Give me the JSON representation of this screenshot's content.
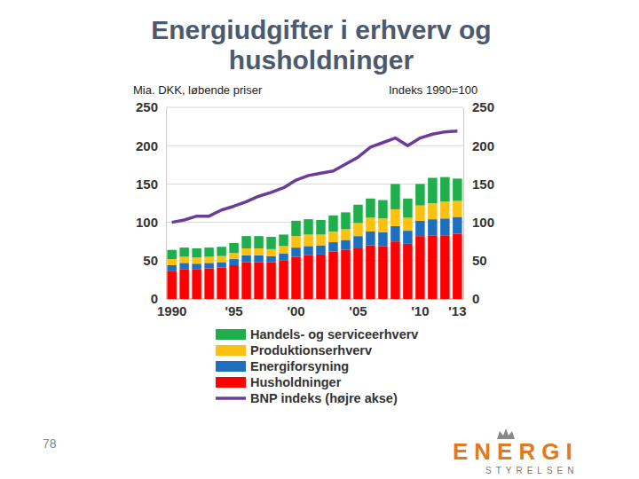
{
  "chart_data": {
    "type": "bar",
    "title": "Energiudgifter i erhverv og husholdninger",
    "ylabel": "Mia. DKK, løbende priser",
    "y2label": "Indeks 1990=100",
    "categories": [
      "1990",
      null,
      null,
      null,
      null,
      "'95",
      null,
      null,
      null,
      null,
      "'00",
      null,
      null,
      null,
      null,
      "'05",
      null,
      null,
      null,
      null,
      "'10",
      null,
      null,
      "'13"
    ],
    "stacked": true,
    "grid": true,
    "legend": "bottom",
    "ylim": [
      0,
      250
    ],
    "yticks": [
      0,
      50,
      100,
      150,
      200,
      250
    ],
    "y2lim": [
      0,
      250
    ],
    "y2ticks": [
      0,
      50,
      100,
      150,
      200,
      250
    ],
    "series": [
      {
        "name": "Husholdninger",
        "color": "#ff0000",
        "values": [
          36,
          39,
          39,
          40,
          41,
          44,
          48,
          48,
          48,
          50,
          55,
          57,
          58,
          62,
          64,
          67,
          70,
          69,
          75,
          72,
          82,
          83,
          83,
          85
        ]
      },
      {
        "name": "Energiforsyning",
        "color": "#1f6fbf",
        "values": [
          8,
          8,
          7,
          7,
          7,
          8,
          9,
          9,
          8,
          9,
          12,
          12,
          12,
          12,
          13,
          15,
          18,
          18,
          20,
          17,
          20,
          21,
          22,
          22
        ]
      },
      {
        "name": "Produktionserhverv",
        "color": "#fcc010",
        "values": [
          8,
          8,
          8,
          8,
          8,
          8,
          9,
          9,
          9,
          10,
          15,
          15,
          14,
          14,
          14,
          17,
          18,
          18,
          22,
          17,
          20,
          21,
          22,
          21
        ]
      },
      {
        "name": "Handels- og serviceerhverv",
        "color": "#1fae4b",
        "values": [
          12,
          12,
          12,
          12,
          12,
          13,
          16,
          16,
          16,
          15,
          20,
          20,
          19,
          21,
          22,
          24,
          25,
          24,
          33,
          25,
          28,
          33,
          32,
          29
        ]
      },
      {
        "name": "BNP indeks (højre akse)",
        "color": "#6a3d9a",
        "type": "line",
        "axis": "y2",
        "values": [
          100,
          103,
          108,
          108,
          116,
          121,
          127,
          134,
          139,
          145,
          155,
          161,
          164,
          167,
          176,
          185,
          198,
          204,
          210,
          200,
          210,
          215,
          218,
          219
        ]
      }
    ]
  },
  "page": {
    "number": 78,
    "logo": "ENERGI",
    "logo_subtitle": "STYRELSEN"
  }
}
